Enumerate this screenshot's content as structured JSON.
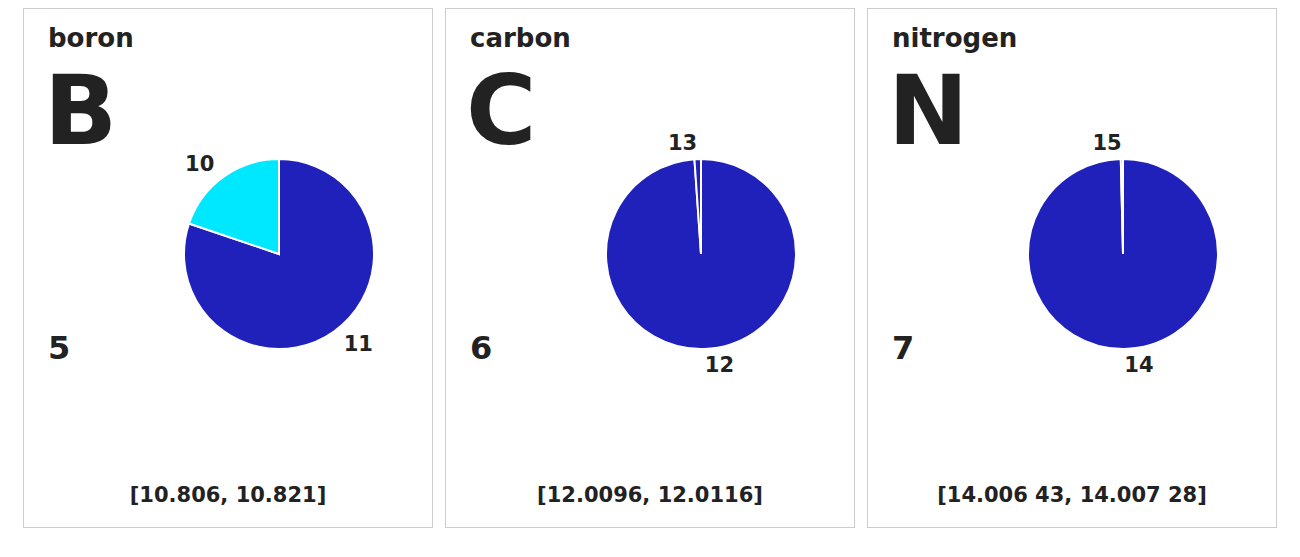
{
  "chart_data": [
    {
      "type": "pie",
      "title": "boron",
      "annotations": [
        "B",
        "5",
        "[10.806, 10.821]"
      ],
      "categories": [
        "11",
        "10"
      ],
      "values": [
        0.802,
        0.198
      ],
      "colors": [
        "#2020BB",
        "#00E8FF"
      ]
    },
    {
      "type": "pie",
      "title": "carbon",
      "annotations": [
        "C",
        "6",
        "[12.0096, 12.0116]"
      ],
      "categories": [
        "12",
        "13"
      ],
      "values": [
        0.989,
        0.011
      ],
      "colors": [
        "#2020BB",
        "#2020BB"
      ]
    },
    {
      "type": "pie",
      "title": "nitrogen",
      "annotations": [
        "N",
        "7",
        "[14.006 43, 14.007 28]"
      ],
      "categories": [
        "14",
        "15"
      ],
      "values": [
        0.9963,
        0.0037
      ],
      "colors": [
        "#2020BB",
        "#2020BB"
      ]
    }
  ]
}
